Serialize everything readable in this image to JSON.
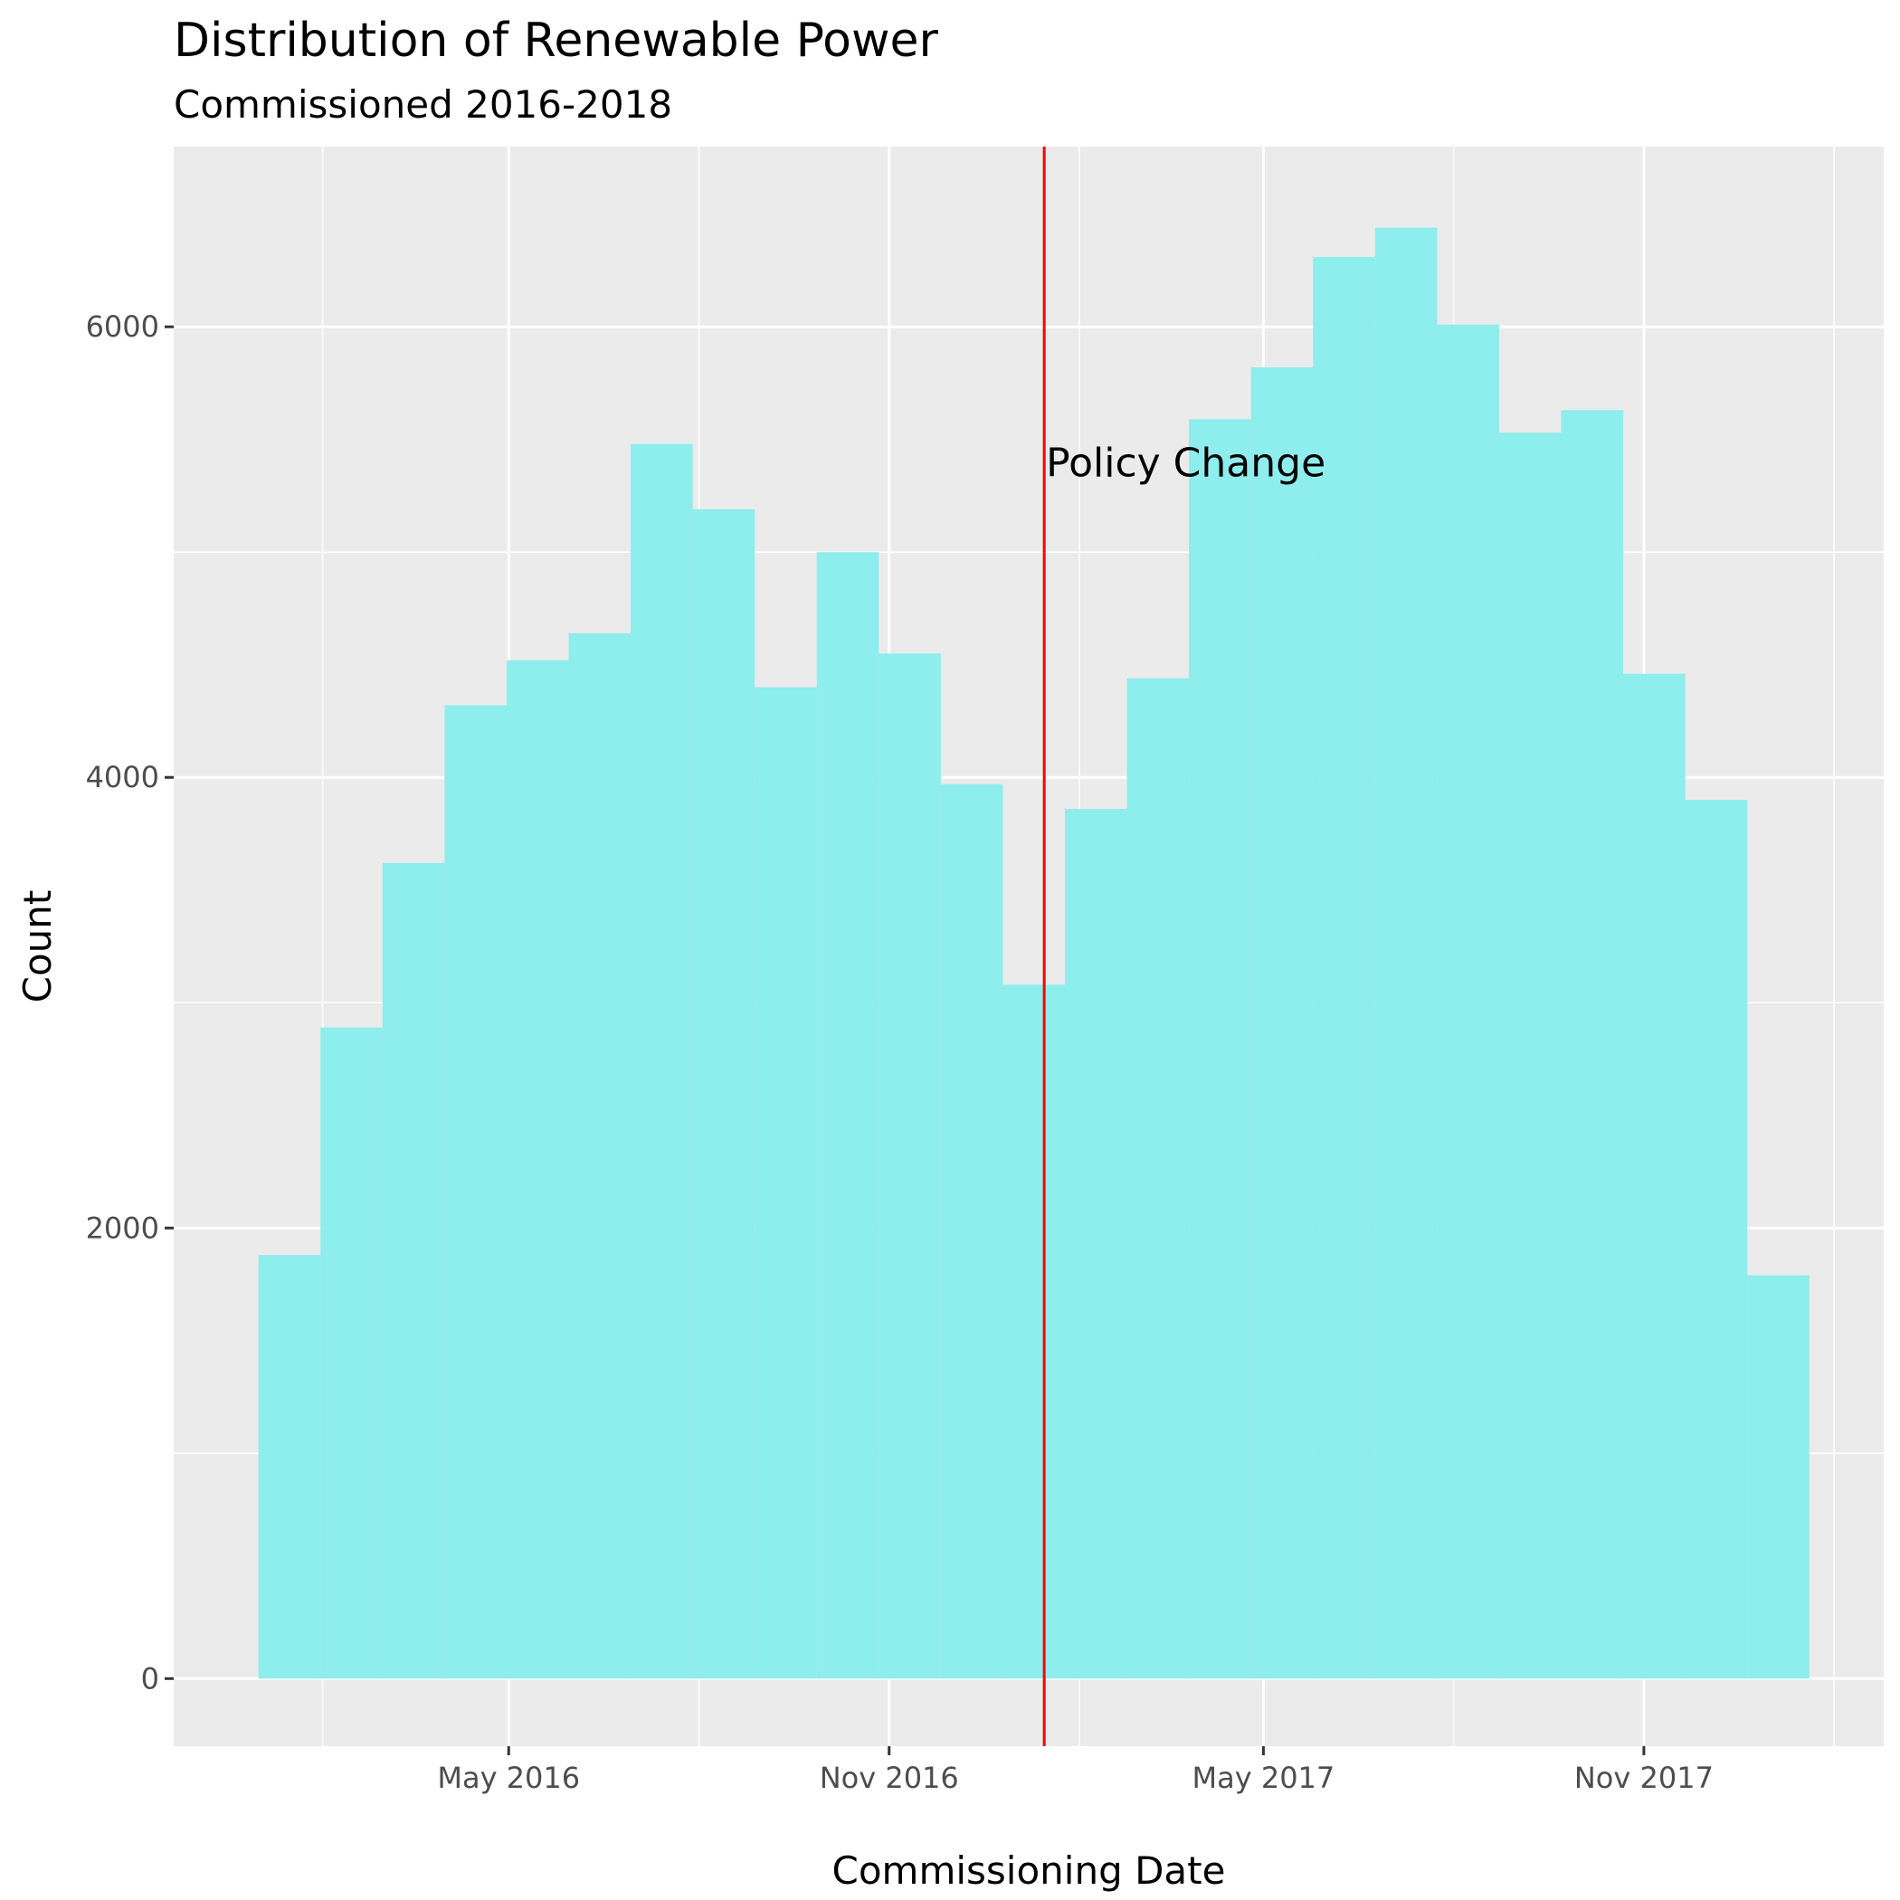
{
  "chart_data": {
    "type": "bar",
    "subtype": "histogram",
    "title": "Distribution of Renewable Power",
    "subtitle": "Commissioned 2016-2018",
    "xlabel": "Commissioning Date",
    "ylabel": "Count",
    "x_axis_type": "date",
    "xlim": [
      "2015-11-21",
      "2018-02-25"
    ],
    "ylim": [
      -300,
      6800
    ],
    "x_ticks": [
      {
        "date": "2016-05-01",
        "label": "May 2016"
      },
      {
        "date": "2016-11-01",
        "label": "Nov 2016"
      },
      {
        "date": "2017-05-01",
        "label": "May 2017"
      },
      {
        "date": "2017-11-01",
        "label": "Nov 2017"
      }
    ],
    "x_minor_ticks": [
      "2016-02-01",
      "2016-08-01",
      "2017-02-01",
      "2017-08-01",
      "2018-02-01"
    ],
    "y_ticks": [
      0,
      2000,
      4000,
      6000
    ],
    "y_minor_ticks": [
      1000,
      3000,
      5000
    ],
    "bar_color": "#8eeded",
    "background_color": "#ebebeb",
    "grid": true,
    "bins": [
      {
        "start": "2016-01-01",
        "end": "2016-01-31",
        "count": 1880
      },
      {
        "start": "2016-01-31",
        "end": "2016-03-01",
        "count": 2890
      },
      {
        "start": "2016-03-01",
        "end": "2016-03-31",
        "count": 3620
      },
      {
        "start": "2016-03-31",
        "end": "2016-04-30",
        "count": 4320
      },
      {
        "start": "2016-04-30",
        "end": "2016-05-30",
        "count": 4520
      },
      {
        "start": "2016-05-30",
        "end": "2016-06-29",
        "count": 4640
      },
      {
        "start": "2016-06-29",
        "end": "2016-07-29",
        "count": 5480
      },
      {
        "start": "2016-07-29",
        "end": "2016-08-28",
        "count": 5190
      },
      {
        "start": "2016-08-28",
        "end": "2016-09-27",
        "count": 4400
      },
      {
        "start": "2016-09-27",
        "end": "2016-10-27",
        "count": 5000
      },
      {
        "start": "2016-10-27",
        "end": "2016-11-26",
        "count": 4550
      },
      {
        "start": "2016-11-26",
        "end": "2016-12-26",
        "count": 3970
      },
      {
        "start": "2016-12-26",
        "end": "2017-01-25",
        "count": 3080
      },
      {
        "start": "2017-01-25",
        "end": "2017-02-24",
        "count": 3860
      },
      {
        "start": "2017-02-24",
        "end": "2017-03-26",
        "count": 4440
      },
      {
        "start": "2017-03-26",
        "end": "2017-04-25",
        "count": 5590
      },
      {
        "start": "2017-04-25",
        "end": "2017-05-25",
        "count": 5820
      },
      {
        "start": "2017-05-25",
        "end": "2017-06-24",
        "count": 6310
      },
      {
        "start": "2017-06-24",
        "end": "2017-07-24",
        "count": 6440
      },
      {
        "start": "2017-07-24",
        "end": "2017-08-23",
        "count": 6010
      },
      {
        "start": "2017-08-23",
        "end": "2017-09-22",
        "count": 5530
      },
      {
        "start": "2017-09-22",
        "end": "2017-10-22",
        "count": 5630
      },
      {
        "start": "2017-10-22",
        "end": "2017-11-21",
        "count": 4460
      },
      {
        "start": "2017-11-21",
        "end": "2017-12-21",
        "count": 3900
      },
      {
        "start": "2017-12-21",
        "end": "2018-01-20",
        "count": 1790
      }
    ],
    "reference_line": {
      "date": "2017-01-15",
      "color": "#ff0000",
      "label": "Policy Change",
      "label_at_count": 5400
    }
  }
}
